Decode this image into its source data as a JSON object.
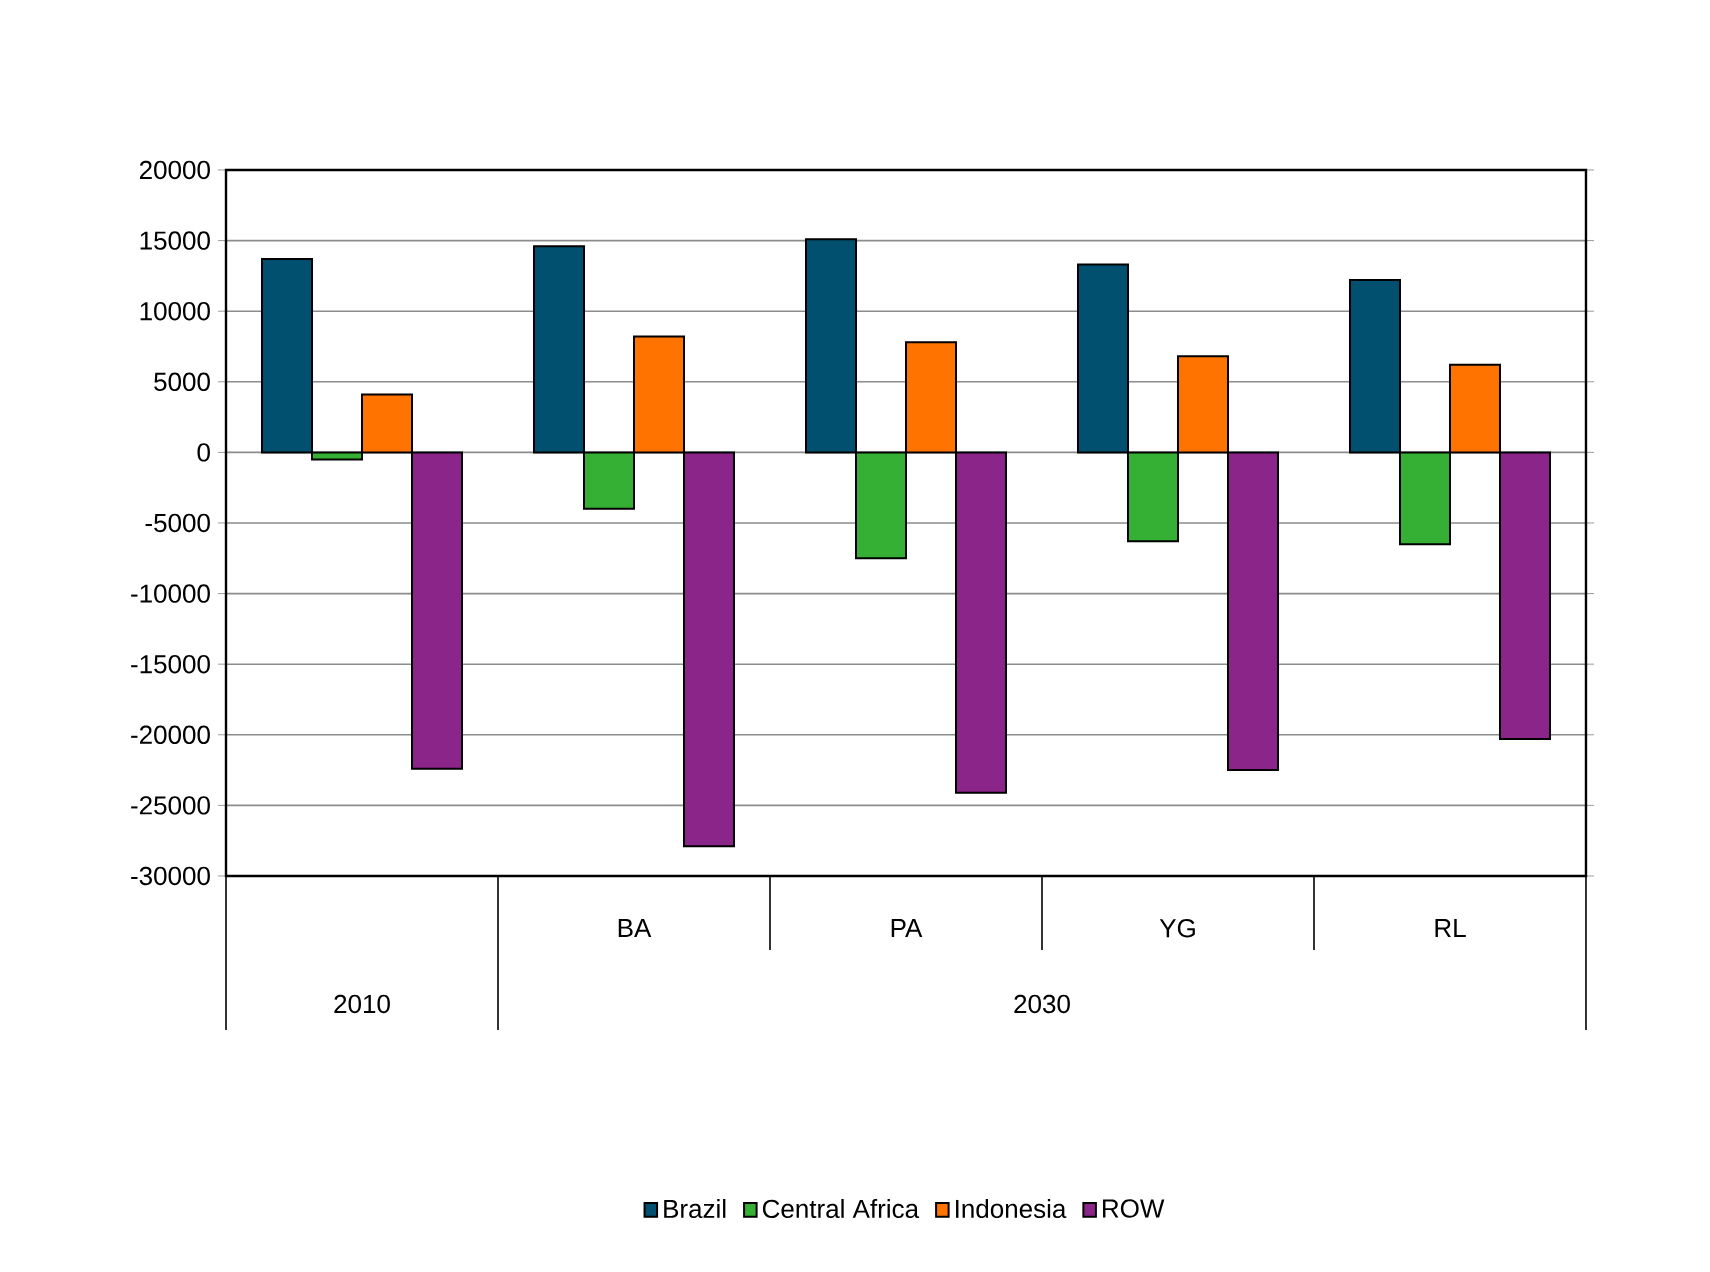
{
  "chart_data": {
    "type": "bar",
    "categories": [
      null,
      "BA",
      "PA",
      "YG",
      "RL"
    ],
    "series": [
      {
        "name": "Brazil",
        "color": "#02506f",
        "values": [
          13700,
          14600,
          15100,
          13300,
          12200
        ]
      },
      {
        "name": "Central Africa",
        "color": "#35b035",
        "values": [
          -500,
          -4000,
          -7500,
          -6300,
          -6500
        ]
      },
      {
        "name": "Indonesia",
        "color": "#ff7300",
        "values": [
          4100,
          8200,
          7800,
          6800,
          6200
        ]
      },
      {
        "name": "ROW",
        "color": "#8b2589",
        "values": [
          -22400,
          -27900,
          -24100,
          -22500,
          -20300
        ]
      }
    ],
    "ylim": [
      -30000,
      20000
    ],
    "yticks": [
      -30000,
      -25000,
      -20000,
      -15000,
      -10000,
      -5000,
      0,
      5000,
      10000,
      15000,
      20000
    ],
    "grid": "y",
    "legend": "bottom",
    "annotations": [
      "2010",
      "2030"
    ]
  }
}
